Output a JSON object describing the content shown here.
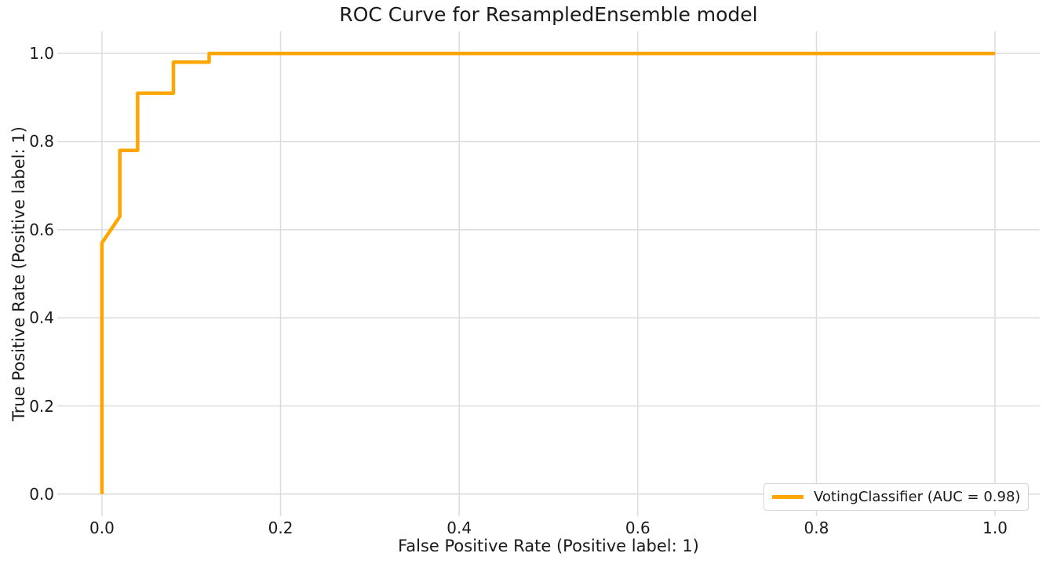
{
  "chart_data": {
    "type": "line",
    "title": "ROC Curve for ResampledEnsemble model",
    "xlabel": "False Positive Rate (Positive label: 1)",
    "ylabel": "True Positive Rate (Positive label: 1)",
    "xlim": [
      -0.05,
      1.05
    ],
    "ylim": [
      -0.05,
      1.05
    ],
    "xticks": [
      "0.0",
      "0.2",
      "0.4",
      "0.6",
      "0.8",
      "1.0"
    ],
    "yticks": [
      "0.0",
      "0.2",
      "0.4",
      "0.6",
      "0.8",
      "1.0"
    ],
    "grid": true,
    "grid_color": "#dcdcdc",
    "background_color": "#ffffff",
    "text_color": "#1a1a1a",
    "legend": {
      "position": "lower right",
      "label": "VotingClassifier (AUC = 0.98)"
    },
    "series": [
      {
        "name": "VotingClassifier",
        "auc": 0.98,
        "color": "#ffa500",
        "line_width": 4.5,
        "points": [
          [
            0.0,
            0.0
          ],
          [
            0.0,
            0.57
          ],
          [
            0.02,
            0.63
          ],
          [
            0.02,
            0.78
          ],
          [
            0.04,
            0.78
          ],
          [
            0.04,
            0.91
          ],
          [
            0.08,
            0.91
          ],
          [
            0.08,
            0.98
          ],
          [
            0.12,
            0.98
          ],
          [
            0.12,
            1.0
          ],
          [
            1.0,
            1.0
          ]
        ]
      }
    ]
  }
}
